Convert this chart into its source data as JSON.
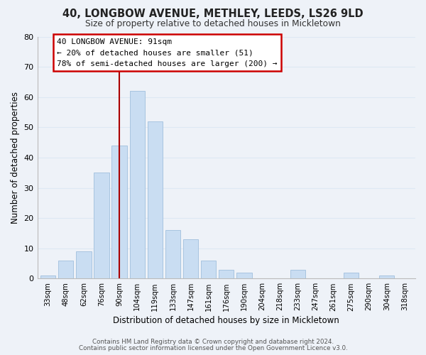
{
  "title": "40, LONGBOW AVENUE, METHLEY, LEEDS, LS26 9LD",
  "subtitle": "Size of property relative to detached houses in Mickletown",
  "xlabel": "Distribution of detached houses by size in Mickletown",
  "ylabel": "Number of detached properties",
  "bar_labels": [
    "33sqm",
    "48sqm",
    "62sqm",
    "76sqm",
    "90sqm",
    "104sqm",
    "119sqm",
    "133sqm",
    "147sqm",
    "161sqm",
    "176sqm",
    "190sqm",
    "204sqm",
    "218sqm",
    "233sqm",
    "247sqm",
    "261sqm",
    "275sqm",
    "290sqm",
    "304sqm",
    "318sqm"
  ],
  "bar_values": [
    1,
    6,
    9,
    35,
    44,
    62,
    52,
    16,
    13,
    6,
    3,
    2,
    0,
    0,
    3,
    0,
    0,
    2,
    0,
    1,
    0
  ],
  "bar_color": "#c9ddf2",
  "bar_edge_color": "#a8c4e0",
  "ylim": [
    0,
    80
  ],
  "yticks": [
    0,
    10,
    20,
    30,
    40,
    50,
    60,
    70,
    80
  ],
  "annotation_line1": "40 LONGBOW AVENUE: 91sqm",
  "annotation_line2": "← 20% of detached houses are smaller (51)",
  "annotation_line3": "78% of semi-detached houses are larger (200) →",
  "annotation_box_color": "#ffffff",
  "annotation_box_edge_color": "#cc0000",
  "vline_color": "#aa0000",
  "footer_line1": "Contains HM Land Registry data © Crown copyright and database right 2024.",
  "footer_line2": "Contains public sector information licensed under the Open Government Licence v3.0.",
  "grid_color": "#dde8f4",
  "background_color": "#eef2f8"
}
